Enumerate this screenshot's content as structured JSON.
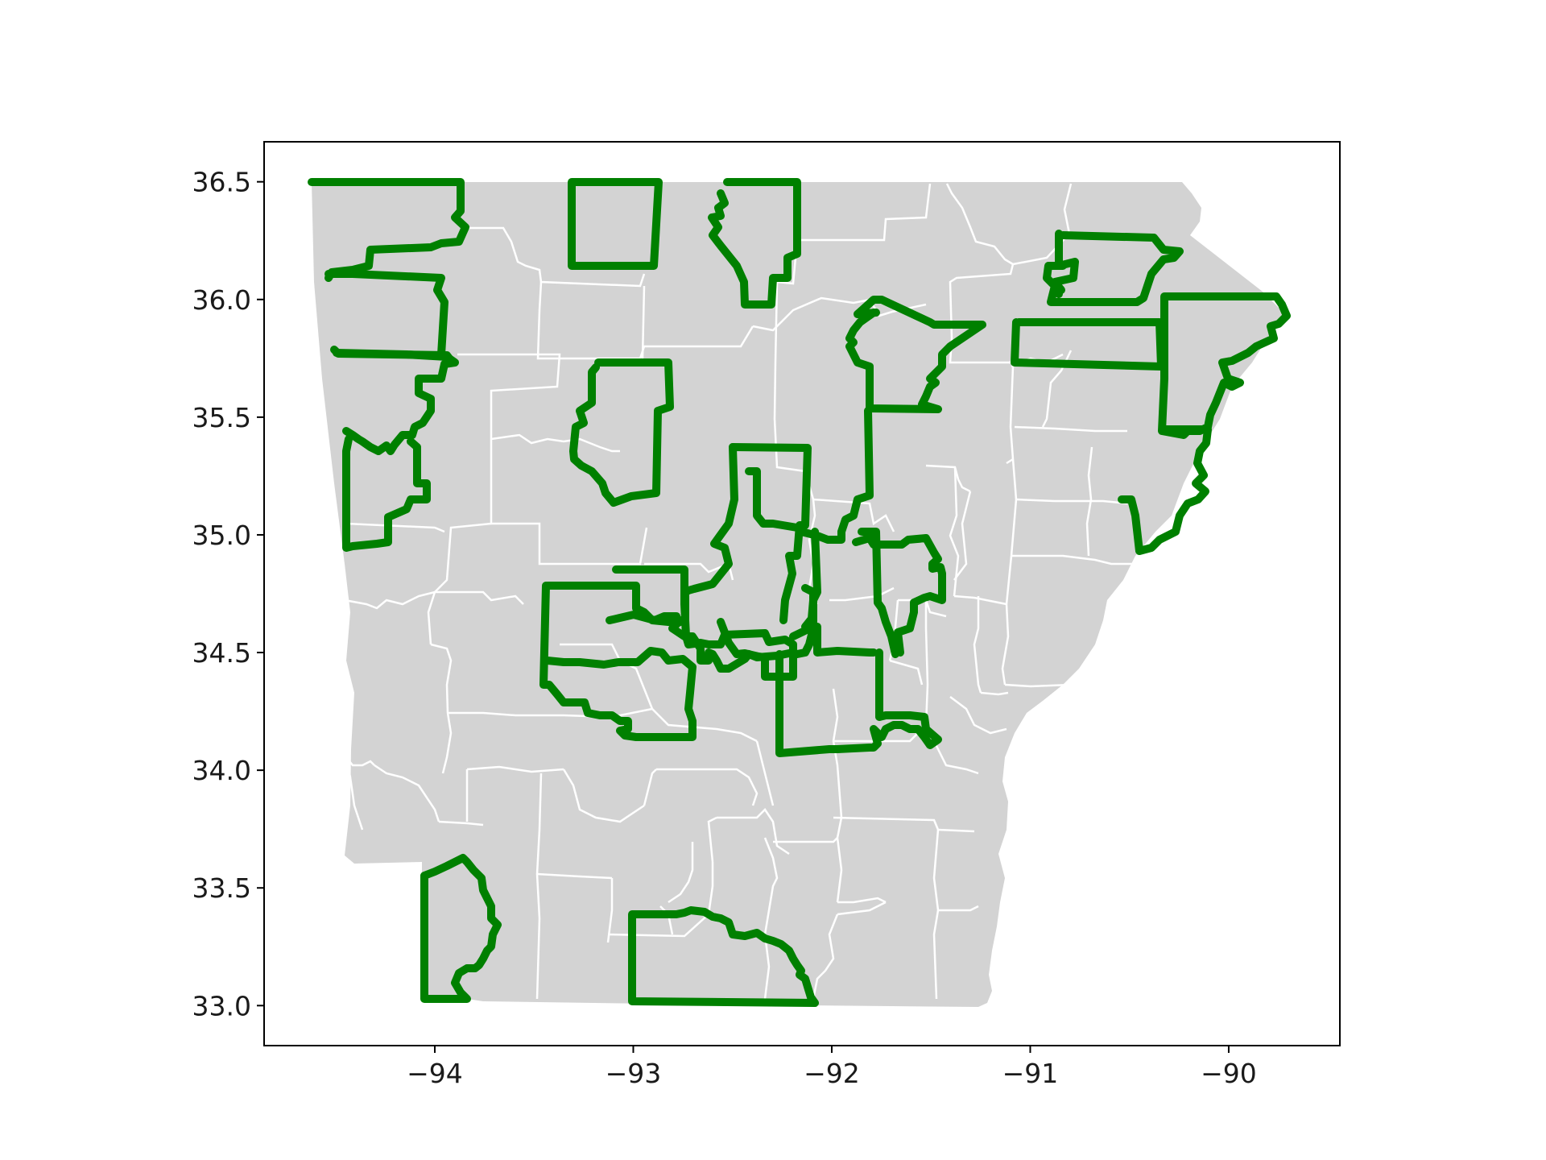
{
  "map": {
    "state": "Arkansas",
    "base_fill": "#d3d3d3",
    "county_line_color": "#ffffff",
    "highlight_color": "#008000",
    "xlim": [
      -94.86,
      -89.44
    ],
    "ylim": [
      32.83,
      36.67
    ],
    "x_ticks": [
      {
        "value": -94,
        "label": "−94"
      },
      {
        "value": -93,
        "label": "−93"
      },
      {
        "value": -92,
        "label": "−92"
      },
      {
        "value": -91,
        "label": "−91"
      },
      {
        "value": -90,
        "label": "−90"
      }
    ],
    "y_ticks": [
      {
        "value": 33.0,
        "label": "33.0"
      },
      {
        "value": 33.5,
        "label": "33.5"
      },
      {
        "value": 34.0,
        "label": "34.0"
      },
      {
        "value": 34.5,
        "label": "34.5"
      },
      {
        "value": 35.0,
        "label": "35.0"
      },
      {
        "value": 35.5,
        "label": "35.5"
      },
      {
        "value": 36.0,
        "label": "36.0"
      },
      {
        "value": 36.5,
        "label": "36.5"
      }
    ]
  }
}
